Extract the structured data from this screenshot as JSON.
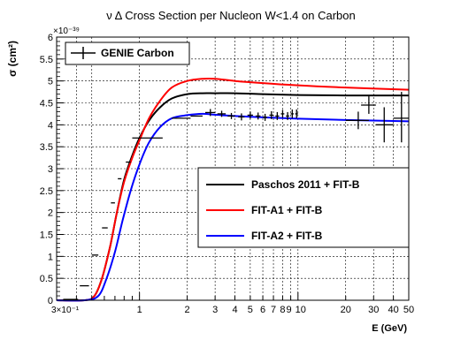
{
  "chart_data": {
    "type": "line",
    "title": "ν Δ Cross Section per Nucleon W<1.4 on Carbon",
    "xlabel": "E (GeV)",
    "ylabel": "σ (cm²)",
    "y_exponent_label": "×10⁻³⁹",
    "x_scale": "log",
    "xlim": [
      0.3,
      50
    ],
    "ylim": [
      0,
      6
    ],
    "grid": true,
    "x_tick_labels": [
      {
        "v": 0.3,
        "t": "3×10⁻¹"
      },
      {
        "v": 1,
        "t": "1"
      },
      {
        "v": 2,
        "t": "2"
      },
      {
        "v": 3,
        "t": "3"
      },
      {
        "v": 4,
        "t": "4"
      },
      {
        "v": 5,
        "t": "5"
      },
      {
        "v": 6,
        "t": "6"
      },
      {
        "v": 7,
        "t": "7"
      },
      {
        "v": 8,
        "t": "8"
      },
      {
        "v": 9,
        "t": "9"
      },
      {
        "v": 10,
        "t": "10"
      },
      {
        "v": 20,
        "t": "20"
      },
      {
        "v": 30,
        "t": "30"
      },
      {
        "v": 40,
        "t": "40"
      },
      {
        "v": 50,
        "t": "50"
      }
    ],
    "y_tick_labels": [
      {
        "v": 0,
        "t": "0"
      },
      {
        "v": 0.5,
        "t": "0.5"
      },
      {
        "v": 1,
        "t": "1"
      },
      {
        "v": 1.5,
        "t": "1.5"
      },
      {
        "v": 2,
        "t": "2"
      },
      {
        "v": 2.5,
        "t": "2.5"
      },
      {
        "v": 3,
        "t": "3"
      },
      {
        "v": 3.5,
        "t": "3.5"
      },
      {
        "v": 4,
        "t": "4"
      },
      {
        "v": 4.5,
        "t": "4.5"
      },
      {
        "v": 5,
        "t": "5"
      },
      {
        "v": 5.5,
        "t": "5.5"
      },
      {
        "v": 6,
        "t": "6"
      }
    ],
    "series": [
      {
        "name": "Paschos 2011 + FIT-B",
        "color": "#000000",
        "x": [
          0.3,
          0.45,
          0.52,
          0.58,
          0.65,
          0.72,
          0.8,
          0.9,
          1.0,
          1.15,
          1.35,
          1.6,
          2.0,
          2.5,
          3.0,
          4.0,
          6.0,
          10.0,
          20.0,
          50.0
        ],
        "y": [
          0.0,
          0.0,
          0.1,
          0.5,
          1.2,
          2.0,
          2.75,
          3.3,
          3.7,
          4.1,
          4.4,
          4.6,
          4.7,
          4.72,
          4.72,
          4.72,
          4.7,
          4.68,
          4.67,
          4.67
        ]
      },
      {
        "name": "FIT-A1  + FIT-B",
        "color": "#ff0000",
        "x": [
          0.3,
          0.45,
          0.52,
          0.58,
          0.65,
          0.72,
          0.8,
          0.9,
          1.0,
          1.15,
          1.35,
          1.6,
          2.0,
          2.5,
          3.0,
          4.0,
          6.0,
          10.0,
          20.0,
          50.0
        ],
        "y": [
          0.0,
          0.0,
          0.1,
          0.5,
          1.2,
          2.0,
          2.7,
          3.25,
          3.65,
          4.15,
          4.55,
          4.85,
          5.0,
          5.05,
          5.05,
          5.0,
          4.95,
          4.9,
          4.85,
          4.8
        ]
      },
      {
        "name": "FIT-A2  + FIT-B",
        "color": "#0000ff",
        "x": [
          0.3,
          0.45,
          0.55,
          0.62,
          0.7,
          0.78,
          0.88,
          1.0,
          1.15,
          1.35,
          1.6,
          2.0,
          2.5,
          3.0,
          4.0,
          6.0,
          10.0,
          20.0,
          50.0
        ],
        "y": [
          0.0,
          0.0,
          0.1,
          0.5,
          1.1,
          1.8,
          2.5,
          3.1,
          3.6,
          3.95,
          4.15,
          4.22,
          4.25,
          4.23,
          4.2,
          4.17,
          4.14,
          4.11,
          4.08
        ]
      },
      {
        "name": "GENIE Carbon",
        "color": "#000000",
        "kind": "errorbars",
        "points": [
          {
            "x": 0.37,
            "xl": 0.33,
            "xh": 0.41,
            "y": 0.02,
            "yl": 0.02,
            "yh": 0.02
          },
          {
            "x": 0.45,
            "xl": 0.42,
            "xh": 0.48,
            "y": 0.33,
            "yl": 0.33,
            "yh": 0.33
          },
          {
            "x": 0.52,
            "xl": 0.5,
            "xh": 0.55,
            "y": 1.03,
            "yl": 1.03,
            "yh": 1.03
          },
          {
            "x": 0.6,
            "xl": 0.58,
            "xh": 0.63,
            "y": 1.65,
            "yl": 1.65,
            "yh": 1.65
          },
          {
            "x": 0.68,
            "xl": 0.66,
            "xh": 0.7,
            "y": 2.22,
            "yl": 2.22,
            "yh": 2.22
          },
          {
            "x": 0.75,
            "xl": 0.73,
            "xh": 0.77,
            "y": 2.77,
            "yl": 2.77,
            "yh": 2.77
          },
          {
            "x": 0.85,
            "xl": 0.82,
            "xh": 0.88,
            "y": 3.15,
            "yl": 3.15,
            "yh": 3.15
          },
          {
            "x": 1.1,
            "xl": 0.9,
            "xh": 1.4,
            "y": 3.7,
            "yl": 3.7,
            "yh": 3.7
          },
          {
            "x": 1.8,
            "xl": 1.6,
            "xh": 2.1,
            "y": 4.15,
            "yl": 4.15,
            "yh": 4.15
          },
          {
            "x": 2.3,
            "xl": 2.1,
            "xh": 2.5,
            "y": 4.2,
            "yl": 4.2,
            "yh": 4.2
          },
          {
            "x": 2.8,
            "xl": 2.6,
            "xh": 3.0,
            "y": 4.28,
            "yl": 4.2,
            "yh": 4.36
          },
          {
            "x": 3.3,
            "xl": 3.1,
            "xh": 3.5,
            "y": 4.25,
            "yl": 4.18,
            "yh": 4.32
          },
          {
            "x": 3.8,
            "xl": 3.6,
            "xh": 4.0,
            "y": 4.2,
            "yl": 4.13,
            "yh": 4.27
          },
          {
            "x": 4.4,
            "xl": 4.2,
            "xh": 4.6,
            "y": 4.18,
            "yl": 4.1,
            "yh": 4.26
          },
          {
            "x": 5.0,
            "xl": 4.8,
            "xh": 5.2,
            "y": 4.22,
            "yl": 4.14,
            "yh": 4.3
          },
          {
            "x": 5.6,
            "xl": 5.4,
            "xh": 5.8,
            "y": 4.2,
            "yl": 4.12,
            "yh": 4.28
          },
          {
            "x": 6.2,
            "xl": 6.0,
            "xh": 6.4,
            "y": 4.17,
            "yl": 4.09,
            "yh": 4.25
          },
          {
            "x": 6.8,
            "xl": 6.6,
            "xh": 7.0,
            "y": 4.22,
            "yl": 4.13,
            "yh": 4.31
          },
          {
            "x": 7.4,
            "xl": 7.2,
            "xh": 7.6,
            "y": 4.2,
            "yl": 4.11,
            "yh": 4.29
          },
          {
            "x": 8.0,
            "xl": 7.8,
            "xh": 8.2,
            "y": 4.25,
            "yl": 4.16,
            "yh": 4.34
          },
          {
            "x": 8.6,
            "xl": 8.4,
            "xh": 8.8,
            "y": 4.2,
            "yl": 4.11,
            "yh": 4.29
          },
          {
            "x": 9.2,
            "xl": 9.0,
            "xh": 9.4,
            "y": 4.25,
            "yl": 4.15,
            "yh": 4.35
          },
          {
            "x": 9.8,
            "xl": 9.6,
            "xh": 10.0,
            "y": 4.25,
            "yl": 4.15,
            "yh": 4.35
          },
          {
            "x": 24.0,
            "xl": 20.0,
            "xh": 28.0,
            "y": 4.1,
            "yl": 3.9,
            "yh": 4.3
          },
          {
            "x": 28.0,
            "xl": 25.0,
            "xh": 31.0,
            "y": 4.45,
            "yl": 4.25,
            "yh": 4.65
          },
          {
            "x": 35.0,
            "xl": 31.0,
            "xh": 40.0,
            "y": 4.0,
            "yl": 3.6,
            "yh": 4.4
          },
          {
            "x": 45.0,
            "xl": 40.0,
            "xh": 50.0,
            "y": 4.15,
            "yl": 3.6,
            "yh": 4.75
          }
        ]
      }
    ],
    "legends": [
      {
        "entries": [
          "GENIE Carbon"
        ]
      },
      {
        "entries": [
          "Paschos 2011 + FIT-B",
          "FIT-A1  + FIT-B",
          "FIT-A2  + FIT-B"
        ]
      }
    ]
  }
}
